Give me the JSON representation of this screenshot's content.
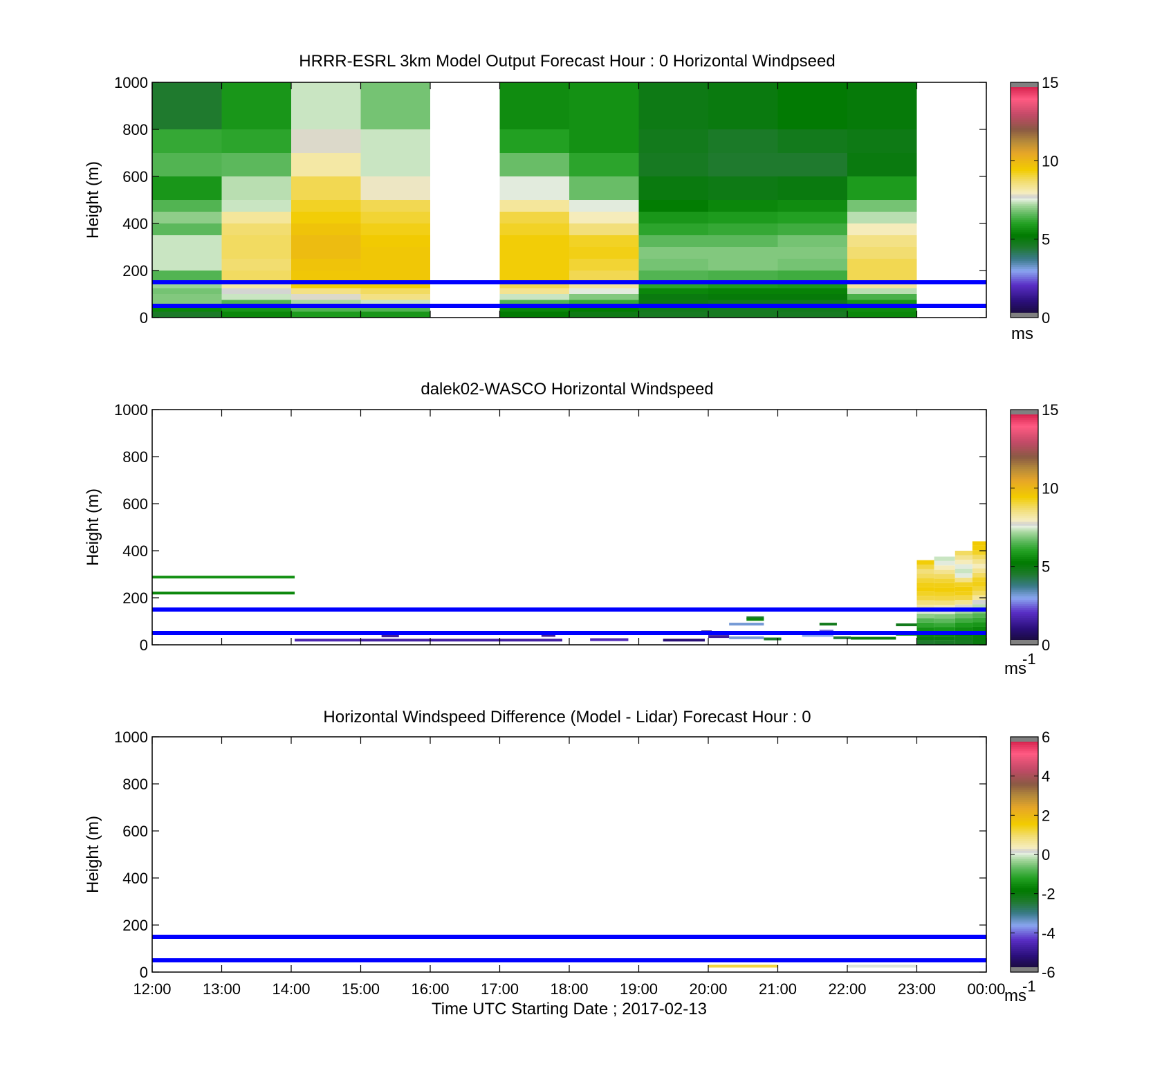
{
  "chart_data": [
    {
      "type": "heatmap",
      "title": "HRRR-ESRL 3km Model Output   Forecast Hour : 0 Horizontal Windpseed",
      "ylabel": "Height (m)",
      "ylim": [
        0,
        1000
      ],
      "yticks": [
        "0",
        "200",
        "400",
        "600",
        "800",
        "1000"
      ],
      "colorbar": {
        "min": 0,
        "max": 15,
        "ticks": [
          "0",
          "5",
          "10",
          "15"
        ],
        "unit": "ms"
      },
      "reference_lines_m": [
        150,
        50
      ],
      "reference_line_color": "#0000ff",
      "hours": [
        "12:00",
        "13:00",
        "14:00",
        "15:00",
        "16:00",
        "17:00",
        "18:00",
        "19:00",
        "20:00",
        "21:00",
        "22:00",
        "23:00"
      ],
      "levels_top_m": [
        1000,
        800,
        700,
        600,
        500,
        450,
        400,
        350,
        300,
        250,
        200,
        150,
        125,
        100,
        75,
        50,
        25
      ],
      "windspeed_ms": [
        [
          4.5,
          6.2,
          6.5,
          5.8,
          6.5,
          7.0,
          6.6,
          7.4,
          7.4,
          7.4,
          6.5,
          7.1,
          6.8,
          6.9,
          6.9,
          5.5,
          4.6
        ],
        [
          5.8,
          6.1,
          6.6,
          7.3,
          7.4,
          8.3,
          8.7,
          8.8,
          8.8,
          8.7,
          8.8,
          8.2,
          7.7,
          7.4,
          6.5,
          5.8,
          5.5
        ],
        [
          7.4,
          7.8,
          8.2,
          8.9,
          9.2,
          9.4,
          9.7,
          9.9,
          9.9,
          9.7,
          9.6,
          9.4,
          8.5,
          7.8,
          7.2,
          6.5,
          5.9
        ],
        [
          6.8,
          7.4,
          7.4,
          7.9,
          8.9,
          9.1,
          9.3,
          9.5,
          9.6,
          9.6,
          9.6,
          9.4,
          8.8,
          8.5,
          7.4,
          6.5,
          5.8
        ],
        [
          null,
          null,
          null,
          null,
          null,
          null,
          null,
          null,
          null,
          null,
          null,
          null,
          null,
          null,
          null,
          null,
          null
        ],
        [
          5.6,
          6.0,
          6.7,
          7.6,
          8.3,
          9.0,
          9.2,
          9.4,
          9.4,
          9.4,
          9.4,
          8.9,
          8.4,
          7.4,
          6.5,
          5.5,
          5.2
        ],
        [
          5.7,
          5.7,
          6.1,
          6.7,
          7.6,
          8.0,
          8.6,
          9.2,
          9.3,
          9.1,
          8.9,
          8.3,
          7.6,
          6.9,
          6.2,
          5.3,
          4.9
        ],
        [
          4.9,
          4.8,
          4.7,
          5.0,
          5.3,
          5.8,
          6.1,
          6.6,
          6.9,
          6.8,
          6.5,
          6.1,
          5.5,
          5.0,
          4.9,
          4.8,
          4.7
        ],
        [
          5.0,
          4.6,
          4.5,
          4.9,
          5.5,
          5.9,
          6.2,
          6.6,
          6.9,
          6.9,
          6.4,
          5.9,
          5.4,
          5.1,
          4.8,
          4.7,
          4.7
        ],
        [
          5.2,
          4.8,
          4.5,
          5.0,
          5.6,
          6.0,
          6.3,
          6.8,
          6.9,
          6.8,
          6.3,
          5.8,
          5.4,
          5.1,
          4.8,
          4.8,
          4.7
        ],
        [
          5.1,
          4.9,
          5.0,
          5.9,
          6.8,
          7.3,
          8.0,
          8.5,
          8.7,
          8.9,
          8.9,
          8.3,
          7.3,
          6.4,
          5.8,
          5.6,
          5.5
        ],
        [
          null,
          null,
          null,
          null,
          null,
          null,
          null,
          null,
          null,
          null,
          null,
          null,
          null,
          null,
          null,
          null,
          null
        ]
      ]
    },
    {
      "type": "heatmap",
      "title": "dalek02-WASCO  Horizontal Windspeed",
      "ylabel": "Height (m)",
      "ylim": [
        0,
        1000
      ],
      "yticks": [
        "0",
        "200",
        "400",
        "600",
        "800",
        "1000"
      ],
      "colorbar": {
        "min": 0,
        "max": 15,
        "ticks": [
          "0",
          "5",
          "10",
          "15"
        ],
        "unit": "ms",
        "unit_exponent": "-1"
      },
      "reference_lines_m": [
        150,
        50
      ],
      "reference_line_color": "#0000ff",
      "segments": [
        {
          "t0": 12.0,
          "t1": 14.05,
          "h": 288,
          "v": 5.7
        },
        {
          "t0": 12.0,
          "t1": 14.05,
          "h": 220,
          "v": 5.5
        },
        {
          "t0": 14.05,
          "t1": 15.0,
          "h": 20,
          "v": 1.8
        },
        {
          "t0": 15.3,
          "t1": 15.55,
          "h": 38,
          "v": 1.5
        },
        {
          "t0": 15.0,
          "t1": 17.9,
          "h": 20,
          "v": 1.6
        },
        {
          "t0": 17.6,
          "t1": 17.8,
          "h": 40,
          "v": 1.5
        },
        {
          "t0": 18.3,
          "t1": 18.85,
          "h": 22,
          "v": 1.9
        },
        {
          "t0": 19.35,
          "t1": 19.95,
          "h": 20,
          "v": 1.0
        },
        {
          "t0": 19.9,
          "t1": 20.05,
          "h": 55,
          "v": 0.8
        },
        {
          "t0": 20.0,
          "t1": 20.3,
          "h": 35,
          "v": 1.5
        },
        {
          "t0": 20.3,
          "t1": 20.8,
          "h": 88,
          "v": 3.2
        },
        {
          "t0": 20.55,
          "t1": 20.8,
          "h": 115,
          "v": 4.5
        },
        {
          "t0": 20.55,
          "t1": 20.8,
          "h": 108,
          "v": 5.5
        },
        {
          "t0": 20.3,
          "t1": 20.8,
          "h": 30,
          "v": 3.2
        },
        {
          "t0": 20.8,
          "t1": 21.05,
          "h": 25,
          "v": 4.5
        },
        {
          "t0": 21.35,
          "t1": 21.8,
          "h": 40,
          "v": 3.0
        },
        {
          "t0": 21.6,
          "t1": 21.8,
          "h": 58,
          "v": 2.5
        },
        {
          "t0": 21.6,
          "t1": 21.85,
          "h": 88,
          "v": 4.8
        },
        {
          "t0": 21.8,
          "t1": 22.05,
          "h": 30,
          "v": 4.4
        },
        {
          "t0": 22.05,
          "t1": 22.7,
          "h": 28,
          "v": 5.0
        },
        {
          "t0": 22.7,
          "t1": 23.0,
          "h": 85,
          "v": 4.8
        },
        {
          "t0": 22.7,
          "t1": 23.0,
          "h": 45,
          "v": 5.5
        }
      ],
      "profiles": [
        {
          "t0": 23.0,
          "t1": 23.25,
          "top_m": 360,
          "v": [
            4.5,
            5.0,
            5.4,
            5.7,
            6.1,
            6.5,
            7.0,
            7.5,
            8.2,
            8.6,
            9.0,
            9.2,
            9.4,
            9.3,
            9.1,
            8.8,
            8.6,
            9.0,
            9.4
          ]
        },
        {
          "t0": 23.25,
          "t1": 23.55,
          "top_m": 375,
          "v": [
            4.6,
            5.0,
            5.4,
            5.8,
            6.2,
            6.6,
            6.9,
            7.5,
            8.0,
            8.6,
            9.0,
            9.2,
            9.4,
            9.3,
            9.1,
            8.8,
            8.4,
            8.0,
            7.6,
            7.4
          ]
        },
        {
          "t0": 23.55,
          "t1": 23.8,
          "top_m": 400,
          "v": [
            4.7,
            4.9,
            5.3,
            5.6,
            5.9,
            6.3,
            6.7,
            7.2,
            7.8,
            8.4,
            9.0,
            9.3,
            9.4,
            9.2,
            8.5,
            7.6,
            7.4,
            7.6,
            8.0,
            8.4,
            8.8
          ]
        },
        {
          "t0": 23.8,
          "t1": 24.0,
          "top_m": 440,
          "v": [
            5.0,
            5.1,
            5.3,
            5.5,
            5.8,
            6.2,
            6.5,
            6.9,
            7.3,
            7.7,
            8.3,
            8.8,
            9.1,
            9.3,
            9.2,
            8.8,
            8.4,
            8.0,
            8.4,
            8.8,
            9.2,
            9.4,
            9.5
          ]
        }
      ]
    },
    {
      "type": "heatmap",
      "title": "Horizontal Windspeed Difference (Model - Lidar) Forecast Hour : 0",
      "ylabel": "Height (m)",
      "xlabel": "Time UTC  Starting Date ; 2017-02-13",
      "ylim": [
        0,
        1000
      ],
      "yticks": [
        "0",
        "200",
        "400",
        "600",
        "800",
        "1000"
      ],
      "xticks": [
        "12:00",
        "13:00",
        "14:00",
        "15:00",
        "16:00",
        "17:00",
        "18:00",
        "19:00",
        "20:00",
        "21:00",
        "22:00",
        "23:00",
        "00:00"
      ],
      "colorbar": {
        "min": -6,
        "max": 6,
        "ticks": [
          "-6",
          "-4",
          "-2",
          "0",
          "2",
          "4",
          "6"
        ],
        "unit": "ms",
        "unit_exponent": "-1"
      },
      "reference_lines_m": [
        150,
        50
      ],
      "reference_line_color": "#0000ff",
      "segments": [
        {
          "t0": 20.0,
          "t1": 21.0,
          "h": 25,
          "v": 1.2
        },
        {
          "t0": 22.0,
          "t1": 23.0,
          "h": 25,
          "v": 0.1
        }
      ]
    }
  ]
}
